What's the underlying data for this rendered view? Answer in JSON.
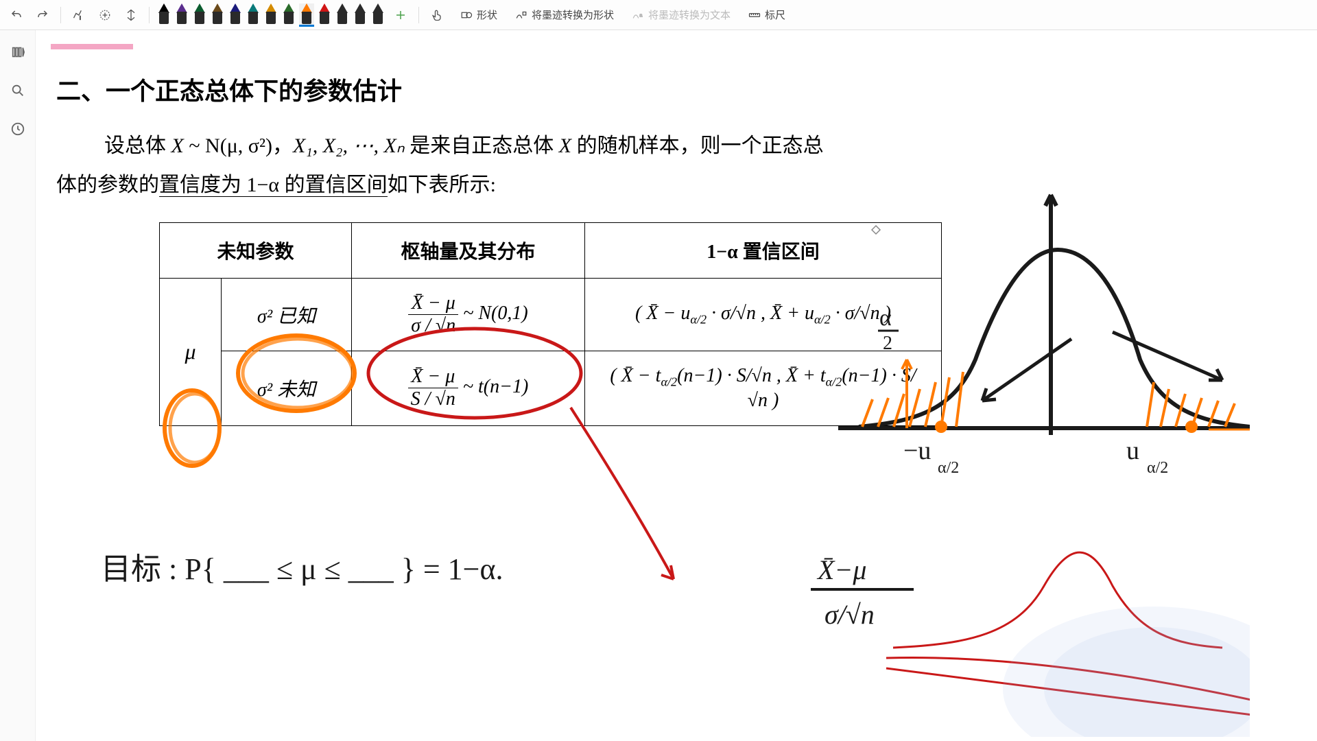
{
  "toolbar": {
    "undo_title": "撤销",
    "redo_title": "重做",
    "lasso_title": "套索选择",
    "add_pen_title": "添加笔",
    "spacing_title": "插入空间",
    "pens": [
      {
        "color": "#000000"
      },
      {
        "color": "#5b2d8e"
      },
      {
        "color": "#0a5c2e"
      },
      {
        "color": "#6b4a1a"
      },
      {
        "color": "#1a1a7a"
      },
      {
        "color": "#0a7a7a"
      },
      {
        "color": "#d48b00"
      },
      {
        "color": "#2a6b2a"
      },
      {
        "color": "#ff7a00",
        "selected": true
      },
      {
        "color": "#d01515"
      },
      {
        "color": "#2a2a2a"
      },
      {
        "color": "#2a2a2a"
      },
      {
        "color": "#2a2a2a"
      }
    ],
    "add_tool_title": "添加",
    "touch_title": "触控",
    "shapes_label": "形状",
    "ink_to_shape_label": "将墨迹转换为形状",
    "ink_to_text_label": "将墨迹转换为文本",
    "ruler_label": "标尺"
  },
  "rail": {
    "nav_title": "导航",
    "search_title": "搜索",
    "history_title": "历史"
  },
  "content": {
    "heading": "二、一个正态总体下的参数估计",
    "para_line1_a": "设总体 ",
    "para_line1_b": " ~ N(μ, σ²)，",
    "para_line1_c": " 是来自正态总体 ",
    "para_line1_d": " 的随机样本，则一个正态总",
    "para_line2_a": "体的参数的",
    "para_line2_b": "置信度为 1−α 的置信区间",
    "para_line2_c": "如下表所示:",
    "X": "X",
    "seq": "X₁, X₂, ⋯, Xₙ",
    "table": {
      "h1": "未知参数",
      "h2": "枢轴量及其分布",
      "h3": "1−α 置信区间",
      "mu": "μ",
      "sigma2_known": "σ² 已知",
      "sigma2_unknown": "σ² 未知",
      "pivot1_num": "X̄ − μ",
      "pivot1_den": "σ / √n",
      "pivot1_dist": " ~ N(0,1)",
      "pivot2_num": "X̄ − μ",
      "pivot2_den": "S / √n",
      "pivot2_dist": " ~ t(n−1)",
      "ci1": "( X̄ − u",
      "ci1_sub": "α/2",
      "ci1_mid": " · σ/√n ,  X̄ + u",
      "ci1_end": " · σ/√n )",
      "ci2": "( X̄ − t",
      "ci2_sub": "α/2",
      "ci2_mid": "(n−1) · S/√n ,  X̄ + t",
      "ci2_end": "(n−1) · S/√n )"
    }
  },
  "annotations": {
    "orange_circle_color": "#ff7a00",
    "red_circle_color": "#c91818",
    "black_ink_color": "#1a1a1a",
    "handwriting": {
      "goal": "目标 :  P{ ___ ≤ μ ≤ ___ } = 1−α.",
      "frac_top": "X̄ − μ",
      "frac_bot": "σ/√n",
      "alpha_half_left": "α/2",
      "alpha_half_right": "α/2",
      "neg_u": "−u",
      "pos_u": "u",
      "sub_ah": "α/2"
    }
  }
}
